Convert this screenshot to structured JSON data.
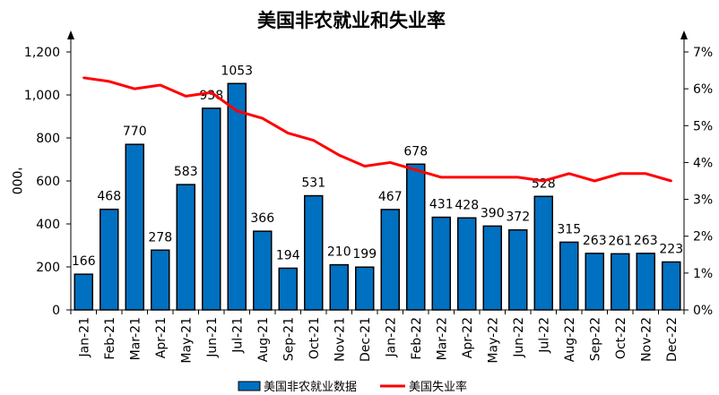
{
  "chart_data": {
    "type": "bar",
    "title": "美国非农就业和失业率",
    "ylabel": "'000",
    "categories": [
      "Jan-21",
      "Feb-21",
      "Mar-21",
      "Apr-21",
      "May-21",
      "Jun-21",
      "Jul-21",
      "Aug-21",
      "Sep-21",
      "Oct-21",
      "Nov-21",
      "Dec-21",
      "Jan-22",
      "Feb-22",
      "Mar-22",
      "Apr-22",
      "May-22",
      "Jun-22",
      "Jul-22",
      "Aug-22",
      "Sep-22",
      "Oct-22",
      "Nov-22",
      "Dec-22"
    ],
    "series": [
      {
        "name": "美国非农就业数据",
        "type": "bar",
        "axis": "left",
        "color": "#0070C0",
        "values": [
          166,
          468,
          770,
          278,
          583,
          938,
          1053,
          366,
          194,
          531,
          210,
          199,
          467,
          678,
          431,
          428,
          390,
          372,
          528,
          315,
          263,
          261,
          263,
          223
        ]
      },
      {
        "name": "美国失业率",
        "type": "line",
        "axis": "right",
        "color": "#FF0000",
        "values": [
          6.3,
          6.2,
          6.0,
          6.1,
          5.8,
          5.9,
          5.4,
          5.2,
          4.8,
          4.6,
          4.2,
          3.9,
          4.0,
          3.8,
          3.6,
          3.6,
          3.6,
          3.6,
          3.5,
          3.7,
          3.5,
          3.7,
          3.7,
          3.5
        ]
      }
    ],
    "y_left": {
      "ylim": [
        0,
        1200
      ],
      "ticks": [
        "0",
        "200",
        "400",
        "600",
        "800",
        "1,000",
        "1,200"
      ]
    },
    "y_right": {
      "ylim": [
        0,
        7
      ],
      "ticks": [
        "0%",
        "1%",
        "2%",
        "3%",
        "4%",
        "5%",
        "6%",
        "7%"
      ]
    },
    "legend_position": "bottom",
    "grid": false
  }
}
